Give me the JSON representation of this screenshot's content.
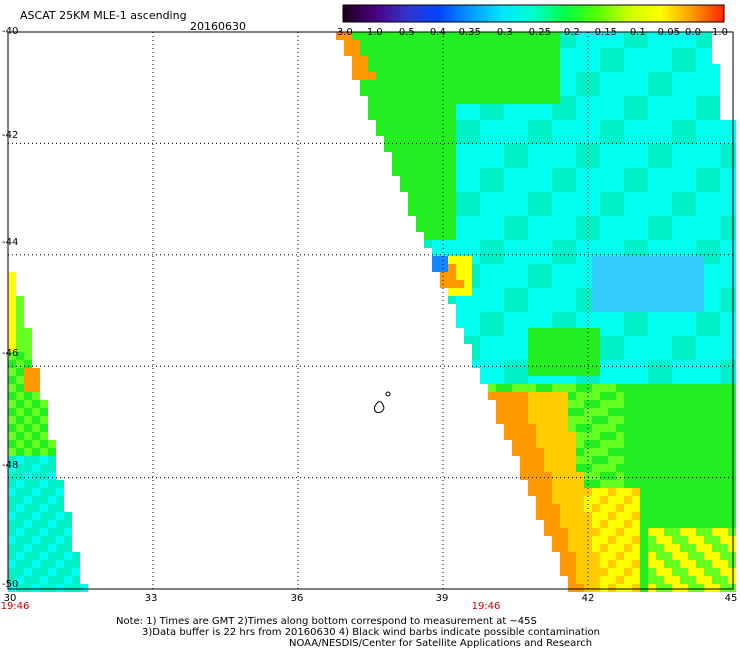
{
  "header": {
    "title": "ASCAT 25KM MLE-1 ascending",
    "date": "20160630"
  },
  "colorbar": {
    "labels": [
      "-3.0",
      "-1.0",
      "-0.5",
      "-0.4",
      "-0.35",
      "-0.3",
      "-0.25",
      "-0.2",
      "-0.15",
      "-0.1",
      "-0.05",
      "0.0",
      "1.0"
    ],
    "colors": [
      "#1a001a",
      "#4b0082",
      "#3333cc",
      "#0044ff",
      "#0099ff",
      "#00e5ff",
      "#00ffcc",
      "#00ff44",
      "#55ff00",
      "#ccff00",
      "#ffff00",
      "#ff9900",
      "#ff2200"
    ]
  },
  "axes": {
    "x_ticks": [
      "30",
      "33",
      "36",
      "39",
      "42",
      "45"
    ],
    "y_ticks": [
      "-40",
      "-42",
      "-44",
      "-46",
      "-48",
      "-50"
    ],
    "x_range": [
      30,
      45
    ],
    "y_range": [
      -40,
      -50
    ]
  },
  "swath_times": [
    "19:46",
    "19:46"
  ],
  "notes": {
    "line1": "Note: 1) Times are GMT 2)Times along bottom correspond to measurement at ~45S",
    "line2": "3)Data buffer is 22 hrs from 20160630 4) Black wind barbs indicate possible contamination",
    "line3": "NOAA/NESDIS/Center for Satellite Applications and Research"
  }
}
